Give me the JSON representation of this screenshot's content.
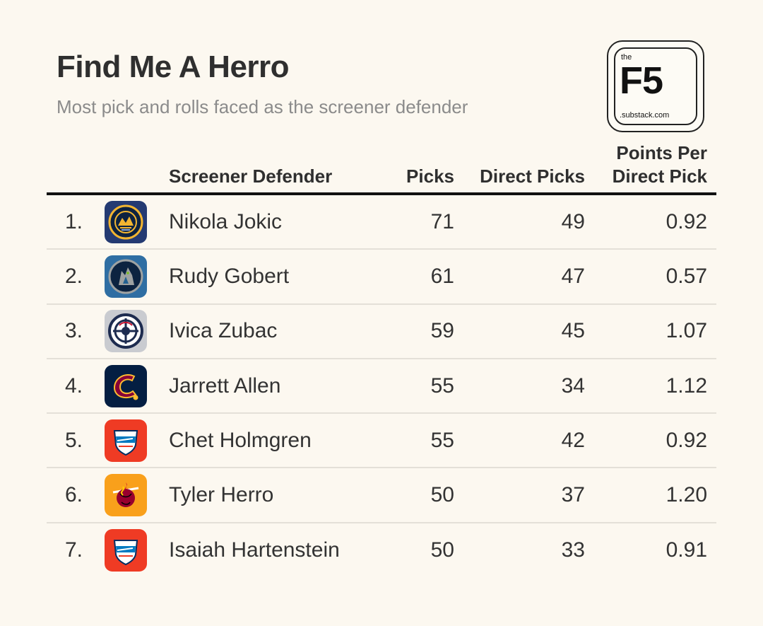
{
  "title": "Find Me A Herro",
  "subtitle": "Most pick and rolls faced as the screener defender",
  "logo": {
    "top": "the",
    "main": "F5",
    "bottom": ".substack.com"
  },
  "columns": {
    "screener_defender": "Screener Defender",
    "picks": "Picks",
    "direct_picks": "Direct Picks",
    "points_per_direct_pick_line1": "Points Per",
    "points_per_direct_pick_line2": "Direct Pick"
  },
  "rows": [
    {
      "rank": "1.",
      "team_icon": "nuggets-logo-icon",
      "name": "Nikola Jokic",
      "picks": "71",
      "direct_picks": "49",
      "ppdp": "0.92"
    },
    {
      "rank": "2.",
      "team_icon": "timberwolves-logo-icon",
      "name": "Rudy Gobert",
      "picks": "61",
      "direct_picks": "47",
      "ppdp": "0.57"
    },
    {
      "rank": "3.",
      "team_icon": "clippers-logo-icon",
      "name": "Ivica Zubac",
      "picks": "59",
      "direct_picks": "45",
      "ppdp": "1.07"
    },
    {
      "rank": "4.",
      "team_icon": "cavaliers-logo-icon",
      "name": "Jarrett Allen",
      "picks": "55",
      "direct_picks": "34",
      "ppdp": "1.12"
    },
    {
      "rank": "5.",
      "team_icon": "thunder-logo-icon",
      "name": "Chet Holmgren",
      "picks": "55",
      "direct_picks": "42",
      "ppdp": "0.92"
    },
    {
      "rank": "6.",
      "team_icon": "heat-logo-icon",
      "name": "Tyler Herro",
      "picks": "50",
      "direct_picks": "37",
      "ppdp": "1.20"
    },
    {
      "rank": "7.",
      "team_icon": "thunder-logo-icon",
      "name": "Isaiah Hartenstein",
      "picks": "50",
      "direct_picks": "33",
      "ppdp": "0.91"
    }
  ],
  "colors": {
    "background": "#fcf8f0",
    "title": "#2f2f2f",
    "subtitle": "#8b8b8b",
    "rule": "#111111",
    "row_divider": "#e4e0d8"
  }
}
